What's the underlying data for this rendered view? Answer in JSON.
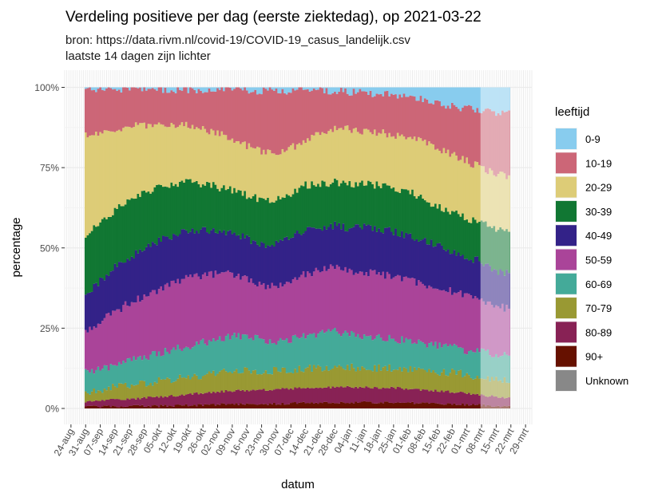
{
  "chart_data": {
    "type": "area",
    "subtype": "stacked-100-percent-daily-bars",
    "title": "Verdeling positieve per dag (eerste ziektedag), op 2021-03-22",
    "subtitle_lines": [
      "bron: https://data.rivm.nl/covid-19/COVID-19_casus_landelijk.csv",
      "laatste 14 dagen zijn lichter"
    ],
    "xlabel": "datum",
    "ylabel": "percentage",
    "ylim": [
      0,
      1
    ],
    "y_ticks": [
      {
        "value": 0,
        "label": "0%"
      },
      {
        "value": 0.25,
        "label": "25%"
      },
      {
        "value": 0.5,
        "label": "50%"
      },
      {
        "value": 0.75,
        "label": "75%"
      },
      {
        "value": 1,
        "label": "100%"
      }
    ],
    "x_range": [
      "2020-08-21",
      "2021-04-01"
    ],
    "x_ticks": [
      {
        "date": "2020-08-24",
        "label": "24-aug"
      },
      {
        "date": "2020-08-31",
        "label": "31-aug"
      },
      {
        "date": "2020-09-07",
        "label": "07-sep"
      },
      {
        "date": "2020-09-14",
        "label": "14-sep"
      },
      {
        "date": "2020-09-21",
        "label": "21-sep"
      },
      {
        "date": "2020-09-28",
        "label": "28-sep"
      },
      {
        "date": "2020-10-05",
        "label": "05-okt"
      },
      {
        "date": "2020-10-12",
        "label": "12-okt"
      },
      {
        "date": "2020-10-19",
        "label": "19-okt"
      },
      {
        "date": "2020-10-26",
        "label": "26-okt"
      },
      {
        "date": "2020-11-02",
        "label": "02-nov"
      },
      {
        "date": "2020-11-09",
        "label": "09-nov"
      },
      {
        "date": "2020-11-16",
        "label": "16-nov"
      },
      {
        "date": "2020-11-23",
        "label": "23-nov"
      },
      {
        "date": "2020-11-30",
        "label": "30-nov"
      },
      {
        "date": "2020-12-07",
        "label": "07-dec"
      },
      {
        "date": "2020-12-14",
        "label": "14-dec"
      },
      {
        "date": "2020-12-21",
        "label": "21-dec"
      },
      {
        "date": "2020-12-28",
        "label": "28-dec"
      },
      {
        "date": "2021-01-04",
        "label": "04-jan"
      },
      {
        "date": "2021-01-11",
        "label": "11-jan"
      },
      {
        "date": "2021-01-18",
        "label": "18-jan"
      },
      {
        "date": "2021-01-25",
        "label": "25-jan"
      },
      {
        "date": "2021-02-01",
        "label": "01-feb"
      },
      {
        "date": "2021-02-08",
        "label": "08-feb"
      },
      {
        "date": "2021-02-15",
        "label": "15-feb"
      },
      {
        "date": "2021-02-22",
        "label": "22-feb"
      },
      {
        "date": "2021-03-01",
        "label": "01-mrt"
      },
      {
        "date": "2021-03-08",
        "label": "08-mrt"
      },
      {
        "date": "2021-03-15",
        "label": "15-mrt"
      },
      {
        "date": "2021-03-22",
        "label": "22-mrt"
      },
      {
        "date": "2021-03-29",
        "label": "29-mrt"
      }
    ],
    "data_start": "2020-08-31",
    "data_end": "2021-03-21",
    "lighter_from": "2021-03-08",
    "legend": {
      "title": "leeftijd",
      "position": "right",
      "entries": [
        {
          "label": "0-9",
          "color": "#88CCEE"
        },
        {
          "label": "10-19",
          "color": "#CC6677"
        },
        {
          "label": "20-29",
          "color": "#DDCC77"
        },
        {
          "label": "30-39",
          "color": "#117733"
        },
        {
          "label": "40-49",
          "color": "#332288"
        },
        {
          "label": "50-59",
          "color": "#AA4499"
        },
        {
          "label": "60-69",
          "color": "#44AA99"
        },
        {
          "label": "70-79",
          "color": "#999933"
        },
        {
          "label": "80-89",
          "color": "#882255"
        },
        {
          "label": "90+",
          "color": "#661100"
        },
        {
          "label": "Unknown",
          "color": "#888888"
        }
      ]
    },
    "series_note": "cumulative upper bound (fraction, stacked from 90+ at bottom up to 10-19) at weekly sample dates; 0-9 fills to 1.0",
    "sample_dates": [
      "2020-08-31",
      "2020-09-07",
      "2020-09-14",
      "2020-09-21",
      "2020-09-28",
      "2020-10-05",
      "2020-10-12",
      "2020-10-19",
      "2020-10-26",
      "2020-11-02",
      "2020-11-09",
      "2020-11-16",
      "2020-11-23",
      "2020-11-30",
      "2020-12-07",
      "2020-12-14",
      "2020-12-21",
      "2020-12-28",
      "2021-01-04",
      "2021-01-11",
      "2021-01-18",
      "2021-01-25",
      "2021-02-01",
      "2021-02-08",
      "2021-02-15",
      "2021-02-22",
      "2021-03-01",
      "2021-03-08",
      "2021-03-15",
      "2021-03-21"
    ],
    "cumulative": {
      "90+": [
        0.005,
        0.006,
        0.006,
        0.007,
        0.007,
        0.008,
        0.009,
        0.01,
        0.011,
        0.012,
        0.013,
        0.014,
        0.014,
        0.015,
        0.016,
        0.017,
        0.017,
        0.018,
        0.019,
        0.019,
        0.019,
        0.019,
        0.018,
        0.017,
        0.016,
        0.014,
        0.012,
        0.01,
        0.008,
        0.007
      ],
      "80-89": [
        0.02,
        0.025,
        0.028,
        0.03,
        0.033,
        0.037,
        0.04,
        0.044,
        0.048,
        0.052,
        0.055,
        0.057,
        0.058,
        0.06,
        0.062,
        0.063,
        0.065,
        0.066,
        0.067,
        0.066,
        0.065,
        0.064,
        0.062,
        0.058,
        0.055,
        0.052,
        0.048,
        0.042,
        0.036,
        0.032
      ],
      "70-79": [
        0.05,
        0.06,
        0.065,
        0.072,
        0.078,
        0.085,
        0.09,
        0.098,
        0.105,
        0.11,
        0.115,
        0.117,
        0.118,
        0.118,
        0.12,
        0.125,
        0.128,
        0.13,
        0.128,
        0.128,
        0.126,
        0.124,
        0.122,
        0.118,
        0.115,
        0.112,
        0.106,
        0.098,
        0.09,
        0.085
      ],
      "60-69": [
        0.11,
        0.12,
        0.135,
        0.15,
        0.16,
        0.17,
        0.185,
        0.195,
        0.205,
        0.215,
        0.225,
        0.225,
        0.215,
        0.205,
        0.215,
        0.228,
        0.232,
        0.24,
        0.23,
        0.228,
        0.222,
        0.215,
        0.21,
        0.205,
        0.195,
        0.19,
        0.18,
        0.175,
        0.17,
        0.165
      ],
      "50-59": [
        0.24,
        0.27,
        0.3,
        0.33,
        0.35,
        0.37,
        0.39,
        0.41,
        0.415,
        0.42,
        0.42,
        0.405,
        0.385,
        0.38,
        0.395,
        0.42,
        0.43,
        0.44,
        0.425,
        0.425,
        0.42,
        0.41,
        0.4,
        0.39,
        0.375,
        0.365,
        0.35,
        0.34,
        0.32,
        0.31
      ],
      "40-49": [
        0.35,
        0.4,
        0.44,
        0.47,
        0.5,
        0.52,
        0.54,
        0.555,
        0.555,
        0.55,
        0.545,
        0.53,
        0.51,
        0.51,
        0.53,
        0.56,
        0.565,
        0.57,
        0.56,
        0.565,
        0.56,
        0.55,
        0.54,
        0.525,
        0.505,
        0.49,
        0.47,
        0.46,
        0.43,
        0.42
      ],
      "30-39": [
        0.54,
        0.58,
        0.62,
        0.65,
        0.67,
        0.69,
        0.7,
        0.705,
        0.7,
        0.69,
        0.68,
        0.665,
        0.65,
        0.65,
        0.67,
        0.695,
        0.7,
        0.705,
        0.7,
        0.7,
        0.695,
        0.685,
        0.675,
        0.655,
        0.63,
        0.61,
        0.59,
        0.58,
        0.555,
        0.55
      ],
      "20-29": [
        0.85,
        0.86,
        0.87,
        0.878,
        0.882,
        0.885,
        0.885,
        0.88,
        0.87,
        0.855,
        0.84,
        0.82,
        0.8,
        0.795,
        0.81,
        0.835,
        0.855,
        0.87,
        0.87,
        0.865,
        0.86,
        0.85,
        0.84,
        0.83,
        0.81,
        0.79,
        0.77,
        0.75,
        0.73,
        0.72
      ],
      "10-19": [
        0.99,
        0.992,
        0.993,
        0.994,
        0.994,
        0.994,
        0.993,
        0.993,
        0.993,
        0.992,
        0.992,
        0.991,
        0.99,
        0.99,
        0.99,
        0.99,
        0.99,
        0.988,
        0.986,
        0.984,
        0.98,
        0.975,
        0.97,
        0.96,
        0.95,
        0.942,
        0.935,
        0.925,
        0.922,
        0.92
      ]
    }
  }
}
